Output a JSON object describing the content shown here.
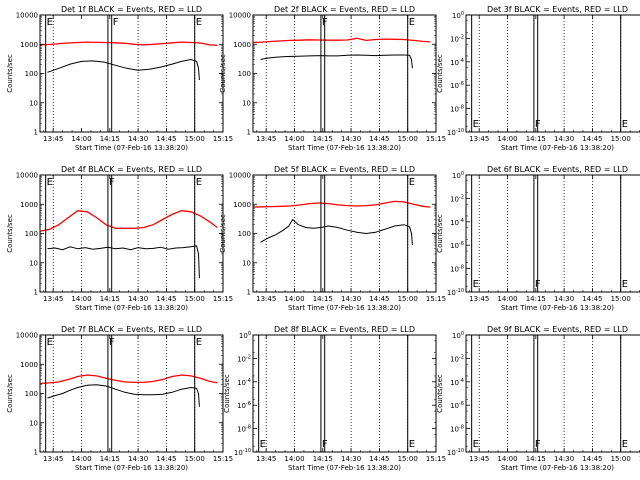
{
  "figure": {
    "x_ticks": [
      "13:45",
      "14:00",
      "14:15",
      "14:30",
      "14:45",
      "15:00",
      "15:15"
    ],
    "x_label": "Start Time (07-Feb-16 13:38:20)",
    "y_label": "Counts/sec",
    "markers": {
      "E": "E",
      "F": "F"
    }
  },
  "chart_data": [
    {
      "type": "line",
      "title": "Det 1f BLACK = Events, RED = LLD",
      "ylim": [
        1,
        10000
      ],
      "log_y": true,
      "y_ticks": [
        "10000",
        "1000",
        "100",
        "10",
        "1"
      ],
      "x_start_min": 0,
      "x_end_min": 97,
      "vlines": [
        {
          "x_min": 3,
          "label": "E"
        },
        {
          "x_min": 36,
          "label": ""
        },
        {
          "x_min": 38,
          "label": "F"
        },
        {
          "x_min": 82,
          "label": "E"
        }
      ],
      "dotted_x_min": [
        7,
        52,
        67,
        82
      ],
      "series": [
        {
          "color": "#ff0000",
          "x": [
            0,
            5,
            10,
            15,
            20,
            25,
            30,
            35,
            40,
            45,
            50,
            55,
            60,
            65,
            70,
            75,
            80,
            85,
            90,
            94
          ],
          "y": [
            950,
            980,
            1050,
            1100,
            1150,
            1180,
            1160,
            1150,
            1120,
            1080,
            1000,
            960,
            1000,
            1050,
            1120,
            1180,
            1150,
            1100,
            950,
            920
          ]
        },
        {
          "color": "#000000",
          "x": [
            4,
            10,
            16,
            22,
            28,
            34,
            40,
            46,
            52,
            58,
            64,
            70,
            75,
            80,
            83,
            84,
            84.5
          ],
          "y": [
            110,
            150,
            210,
            260,
            270,
            245,
            190,
            150,
            130,
            140,
            165,
            210,
            260,
            300,
            260,
            150,
            60
          ]
        }
      ]
    },
    {
      "type": "line",
      "title": "Det 2f BLACK = Events, RED = LLD",
      "ylim": [
        1,
        10000
      ],
      "log_y": true,
      "y_ticks": [
        "10000",
        "1000",
        "100",
        "10",
        "1"
      ],
      "x_start_min": 0,
      "x_end_min": 97,
      "vlines": [
        {
          "x_min": 36,
          "label": "F"
        },
        {
          "x_min": 38,
          "label": ""
        },
        {
          "x_min": 82,
          "label": "E"
        }
      ],
      "dotted_x_min": [
        7,
        22,
        52,
        67,
        82
      ],
      "series": [
        {
          "color": "#ff0000",
          "x": [
            0,
            5,
            10,
            15,
            20,
            25,
            30,
            35,
            40,
            45,
            50,
            55,
            60,
            65,
            70,
            75,
            80,
            85,
            90,
            94
          ],
          "y": [
            1150,
            1180,
            1250,
            1300,
            1350,
            1380,
            1420,
            1400,
            1380,
            1380,
            1400,
            1600,
            1350,
            1450,
            1500,
            1480,
            1450,
            1350,
            1250,
            1200
          ]
        },
        {
          "color": "#000000",
          "x": [
            4,
            8,
            12,
            18,
            24,
            30,
            36,
            40,
            45,
            50,
            55,
            60,
            65,
            70,
            75,
            80,
            83,
            84,
            84.5
          ],
          "y": [
            300,
            340,
            360,
            380,
            390,
            400,
            410,
            400,
            400,
            420,
            430,
            420,
            410,
            420,
            430,
            430,
            420,
            300,
            150
          ]
        }
      ]
    },
    {
      "type": "line",
      "title": "Det 3f BLACK = Events, RED = LLD",
      "ylim": [
        1e-10,
        1
      ],
      "log_y": true,
      "ylim_labels": [
        "10^0",
        "10^-10"
      ],
      "y_ticks": [
        "10^-10",
        "10^-8",
        "10^-6",
        "10^-4",
        "10^-2",
        "10^0"
      ],
      "x_start_min": 0,
      "x_end_min": 97,
      "vlines": [
        {
          "x_min": 3,
          "label": "E"
        },
        {
          "x_min": 36,
          "label": "F"
        },
        {
          "x_min": 38,
          "label": ""
        },
        {
          "x_min": 82,
          "label": "E"
        }
      ],
      "dotted_x_min": [
        7,
        22,
        52,
        67,
        82
      ],
      "series": []
    },
    {
      "type": "line",
      "title": "Det 4f BLACK = Events, RED = LLD",
      "ylim": [
        1,
        10000
      ],
      "log_y": true,
      "y_ticks": [
        "10000",
        "1000",
        "100",
        "10",
        "1"
      ],
      "x_start_min": 0,
      "x_end_min": 97,
      "vlines": [
        {
          "x_min": 3,
          "label": "E"
        },
        {
          "x_min": 36,
          "label": "F"
        },
        {
          "x_min": 38,
          "label": ""
        },
        {
          "x_min": 82,
          "label": "E"
        }
      ],
      "dotted_x_min": [
        7,
        22,
        52,
        67,
        82
      ],
      "series": [
        {
          "color": "#ff0000",
          "x": [
            0,
            5,
            10,
            15,
            20,
            25,
            30,
            35,
            40,
            45,
            50,
            55,
            60,
            65,
            70,
            75,
            80,
            85,
            90,
            94
          ],
          "y": [
            120,
            140,
            200,
            350,
            600,
            550,
            350,
            200,
            150,
            150,
            150,
            160,
            200,
            300,
            450,
            600,
            550,
            400,
            250,
            160
          ]
        },
        {
          "color": "#000000",
          "x": [
            4,
            8,
            12,
            16,
            20,
            24,
            28,
            32,
            36,
            40,
            44,
            48,
            52,
            56,
            60,
            64,
            68,
            72,
            76,
            80,
            83,
            84,
            84.5
          ],
          "y": [
            30,
            32,
            28,
            35,
            30,
            33,
            29,
            31,
            34,
            30,
            32,
            28,
            33,
            30,
            31,
            34,
            29,
            32,
            33,
            35,
            38,
            20,
            3
          ]
        }
      ]
    },
    {
      "type": "line",
      "title": "Det 5f BLACK = Events, RED = LLD",
      "ylim": [
        1,
        10000
      ],
      "log_y": true,
      "y_ticks": [
        "10000",
        "1000",
        "100",
        "10",
        "1"
      ],
      "x_start_min": 0,
      "x_end_min": 97,
      "vlines": [
        {
          "x_min": 36,
          "label": ""
        },
        {
          "x_min": 38,
          "label": ""
        },
        {
          "x_min": 82,
          "label": "E"
        }
      ],
      "dotted_x_min": [
        7,
        22,
        52,
        67,
        82
      ],
      "series": [
        {
          "color": "#ff0000",
          "x": [
            0,
            5,
            10,
            15,
            20,
            25,
            30,
            35,
            40,
            45,
            50,
            55,
            60,
            65,
            70,
            75,
            80,
            85,
            90,
            94
          ],
          "y": [
            800,
            820,
            830,
            850,
            880,
            950,
            1050,
            1100,
            1050,
            950,
            900,
            870,
            900,
            950,
            1100,
            1250,
            1200,
            1000,
            850,
            800
          ]
        },
        {
          "color": "#000000",
          "x": [
            4,
            8,
            12,
            16,
            19,
            21,
            24,
            28,
            32,
            36,
            40,
            45,
            50,
            55,
            60,
            65,
            70,
            75,
            80,
            83,
            84,
            84.5
          ],
          "y": [
            50,
            70,
            90,
            130,
            180,
            300,
            200,
            160,
            150,
            160,
            180,
            160,
            130,
            110,
            100,
            110,
            140,
            180,
            200,
            170,
            100,
            40
          ]
        }
      ]
    },
    {
      "type": "line",
      "title": "Det 6f BLACK = Events, RED = LLD",
      "ylim": [
        1e-10,
        1
      ],
      "log_y": true,
      "ylim_labels": [
        "10^0",
        "10^-10"
      ],
      "y_ticks": [
        "10^-10",
        "10^-8",
        "10^-6",
        "10^-4",
        "10^-2",
        "10^0"
      ],
      "x_start_min": 0,
      "x_end_min": 97,
      "vlines": [
        {
          "x_min": 3,
          "label": "E"
        },
        {
          "x_min": 36,
          "label": "F"
        },
        {
          "x_min": 38,
          "label": ""
        },
        {
          "x_min": 82,
          "label": "E"
        }
      ],
      "dotted_x_min": [
        7,
        22,
        52,
        67,
        82
      ],
      "series": []
    },
    {
      "type": "line",
      "title": "Det 7f BLACK = Events, RED = LLD",
      "ylim": [
        1,
        10000
      ],
      "log_y": true,
      "y_ticks": [
        "10000",
        "1000",
        "100",
        "10",
        "1"
      ],
      "x_start_min": 0,
      "x_end_min": 97,
      "vlines": [
        {
          "x_min": 3,
          "label": "E"
        },
        {
          "x_min": 36,
          "label": "F"
        },
        {
          "x_min": 38,
          "label": ""
        },
        {
          "x_min": 82,
          "label": "E"
        }
      ],
      "dotted_x_min": [
        7,
        22,
        52,
        67,
        82
      ],
      "series": [
        {
          "color": "#ff0000",
          "x": [
            0,
            5,
            10,
            15,
            20,
            25,
            30,
            35,
            40,
            45,
            50,
            55,
            60,
            65,
            70,
            75,
            80,
            85,
            90,
            94
          ],
          "y": [
            220,
            230,
            250,
            300,
            380,
            430,
            400,
            330,
            280,
            250,
            240,
            240,
            260,
            300,
            380,
            430,
            400,
            330,
            260,
            230
          ]
        },
        {
          "color": "#000000",
          "x": [
            4,
            8,
            12,
            16,
            20,
            25,
            30,
            35,
            40,
            45,
            50,
            55,
            60,
            65,
            70,
            75,
            80,
            83,
            84,
            84.5
          ],
          "y": [
            70,
            85,
            100,
            130,
            160,
            190,
            200,
            180,
            140,
            110,
            95,
            90,
            90,
            95,
            110,
            140,
            160,
            150,
            100,
            35
          ]
        }
      ]
    },
    {
      "type": "line",
      "title": "Det 8f BLACK = Events, RED = LLD",
      "ylim": [
        1e-10,
        1
      ],
      "log_y": true,
      "ylim_labels": [
        "10^0",
        "10^-10"
      ],
      "y_ticks": [
        "10^-10",
        "10^-8",
        "10^-6",
        "10^-4",
        "10^-2",
        "10^0"
      ],
      "x_start_min": 0,
      "x_end_min": 97,
      "vlines": [
        {
          "x_min": 3,
          "label": "E"
        },
        {
          "x_min": 36,
          "label": "F"
        },
        {
          "x_min": 38,
          "label": ""
        },
        {
          "x_min": 82,
          "label": "E"
        }
      ],
      "dotted_x_min": [
        7,
        22,
        52,
        67,
        82
      ],
      "series": []
    },
    {
      "type": "line",
      "title": "Det 9f BLACK = Events, RED = LLD",
      "ylim": [
        1e-10,
        1
      ],
      "log_y": true,
      "ylim_labels": [
        "10^0",
        "10^-10"
      ],
      "y_ticks": [
        "10^-10",
        "10^-8",
        "10^-6",
        "10^-4",
        "10^-2",
        "10^0"
      ],
      "x_start_min": 0,
      "x_end_min": 97,
      "vlines": [
        {
          "x_min": 3,
          "label": "E"
        },
        {
          "x_min": 36,
          "label": "F"
        },
        {
          "x_min": 38,
          "label": ""
        },
        {
          "x_min": 82,
          "label": "E"
        }
      ],
      "dotted_x_min": [
        7,
        22,
        52,
        67,
        82
      ],
      "series": []
    }
  ]
}
